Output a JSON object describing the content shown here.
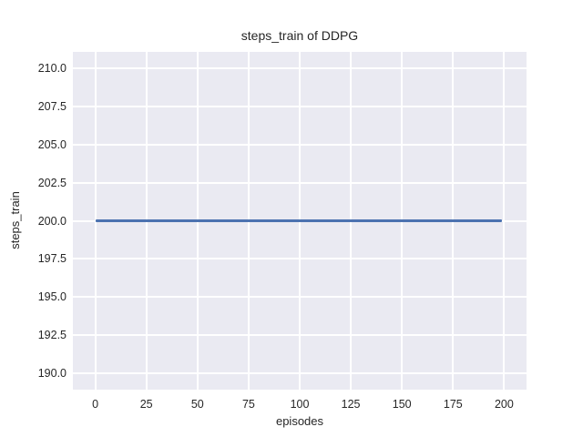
{
  "figure": {
    "background": "#ffffff"
  },
  "chart_data": {
    "type": "line",
    "title": "steps_train of DDPG",
    "xlabel": "episodes",
    "ylabel": "steps_train",
    "series": [
      {
        "name": "steps_train",
        "x": [
          0,
          199
        ],
        "y": [
          200,
          200
        ],
        "color": "#4c72b0"
      }
    ],
    "xticks": [
      0,
      25,
      50,
      75,
      100,
      125,
      150,
      175,
      200
    ],
    "yticks": [
      190.0,
      192.5,
      195.0,
      197.5,
      200.0,
      202.5,
      205.0,
      207.5,
      210.0
    ],
    "ytick_decimals": 1,
    "xlim": [
      -10.95,
      210.95
    ],
    "ylim": [
      188.9,
      211.1
    ],
    "grid": true,
    "legend": false,
    "style": "seaborn-darkgrid",
    "colors": {
      "axes_background": "#eaeaf2",
      "gridline": "#ffffff",
      "line": "#4c72b0",
      "text": "#262626"
    }
  }
}
